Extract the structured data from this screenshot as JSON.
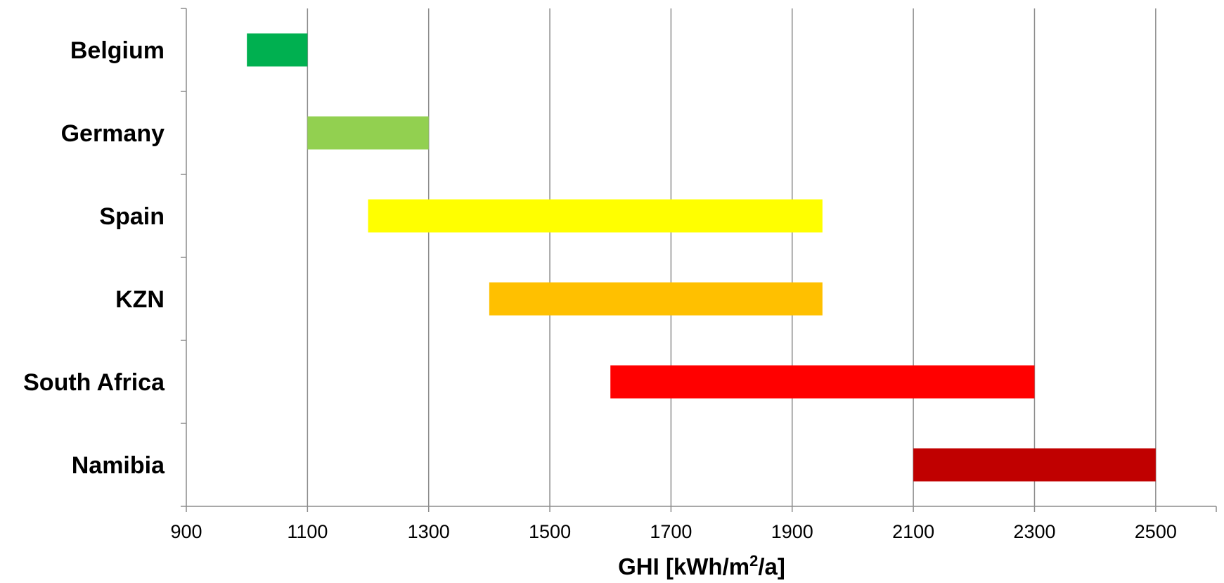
{
  "chart_data": {
    "type": "bar",
    "orientation": "horizontal",
    "subtype": "floating-range",
    "categories": [
      "Belgium",
      "Germany",
      "Spain",
      "KZN",
      "South Africa",
      "Namibia"
    ],
    "ranges": [
      {
        "category": "Belgium",
        "min": 1000,
        "max": 1100,
        "color": "#00b050"
      },
      {
        "category": "Germany",
        "min": 1100,
        "max": 1300,
        "color": "#92d050"
      },
      {
        "category": "Spain",
        "min": 1200,
        "max": 1950,
        "color": "#ffff00"
      },
      {
        "category": "KZN",
        "min": 1400,
        "max": 1950,
        "color": "#ffc000"
      },
      {
        "category": "South Africa",
        "min": 1600,
        "max": 2300,
        "color": "#ff0000"
      },
      {
        "category": "Namibia",
        "min": 2100,
        "max": 2500,
        "color": "#c00000"
      }
    ],
    "x_ticks": [
      "900",
      "1100",
      "1300",
      "1500",
      "1700",
      "1900",
      "2100",
      "2300",
      "2500"
    ],
    "xlim": [
      900,
      2600
    ],
    "xlabel_main": "GHI [kWh/m",
    "xlabel_sup": "2",
    "xlabel_tail": "/a]",
    "grid": "vertical",
    "legend": "none"
  }
}
